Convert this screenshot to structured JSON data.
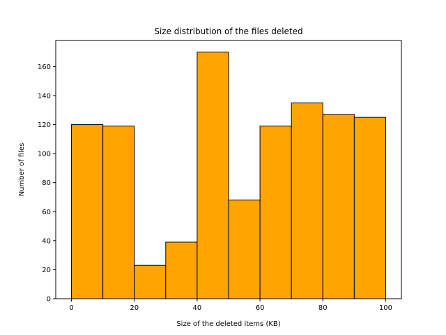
{
  "chart_data": {
    "type": "bar",
    "title": "Size distribution of the files deleted",
    "xlabel": "Size of the deleted items (KB)",
    "ylabel": "Number of files",
    "bin_edges": [
      0,
      10,
      20,
      30,
      40,
      50,
      60,
      70,
      80,
      90,
      100
    ],
    "values": [
      120,
      119,
      23,
      39,
      170,
      68,
      119,
      135,
      127,
      125
    ],
    "xlim": [
      -5,
      105
    ],
    "ylim": [
      0,
      178
    ],
    "xticks": [
      0,
      20,
      40,
      60,
      80,
      100
    ],
    "yticks": [
      0,
      20,
      40,
      60,
      80,
      100,
      120,
      140,
      160
    ],
    "bar_color": "#ffa500",
    "edge_color": "#000000",
    "grid": false
  }
}
